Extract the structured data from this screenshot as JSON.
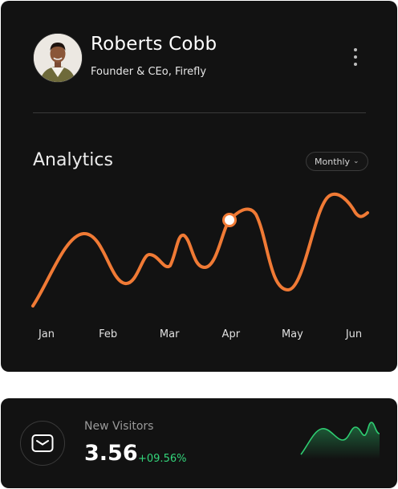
{
  "profile": {
    "name": "Roberts Cobb",
    "role": "Founder & CEo, Firefly",
    "avatar_icon": "person-avatar-icon"
  },
  "analytics": {
    "title": "Analytics",
    "period_label": "Monthly",
    "accent": "#f07a35"
  },
  "chart_data": {
    "type": "line",
    "title": "",
    "xlabel": "",
    "ylabel": "",
    "categories": [
      "Jan",
      "Feb",
      "Mar",
      "Apr",
      "May",
      "Jun"
    ],
    "grid": false,
    "legend": "none",
    "highlighted_point": {
      "x": "Apr",
      "index": 3
    }
  },
  "visitors": {
    "label": "New Visitors",
    "value": "3.56",
    "change": "+09.56%",
    "icon": "wallet-icon",
    "trend_color": "#2ecc71"
  }
}
